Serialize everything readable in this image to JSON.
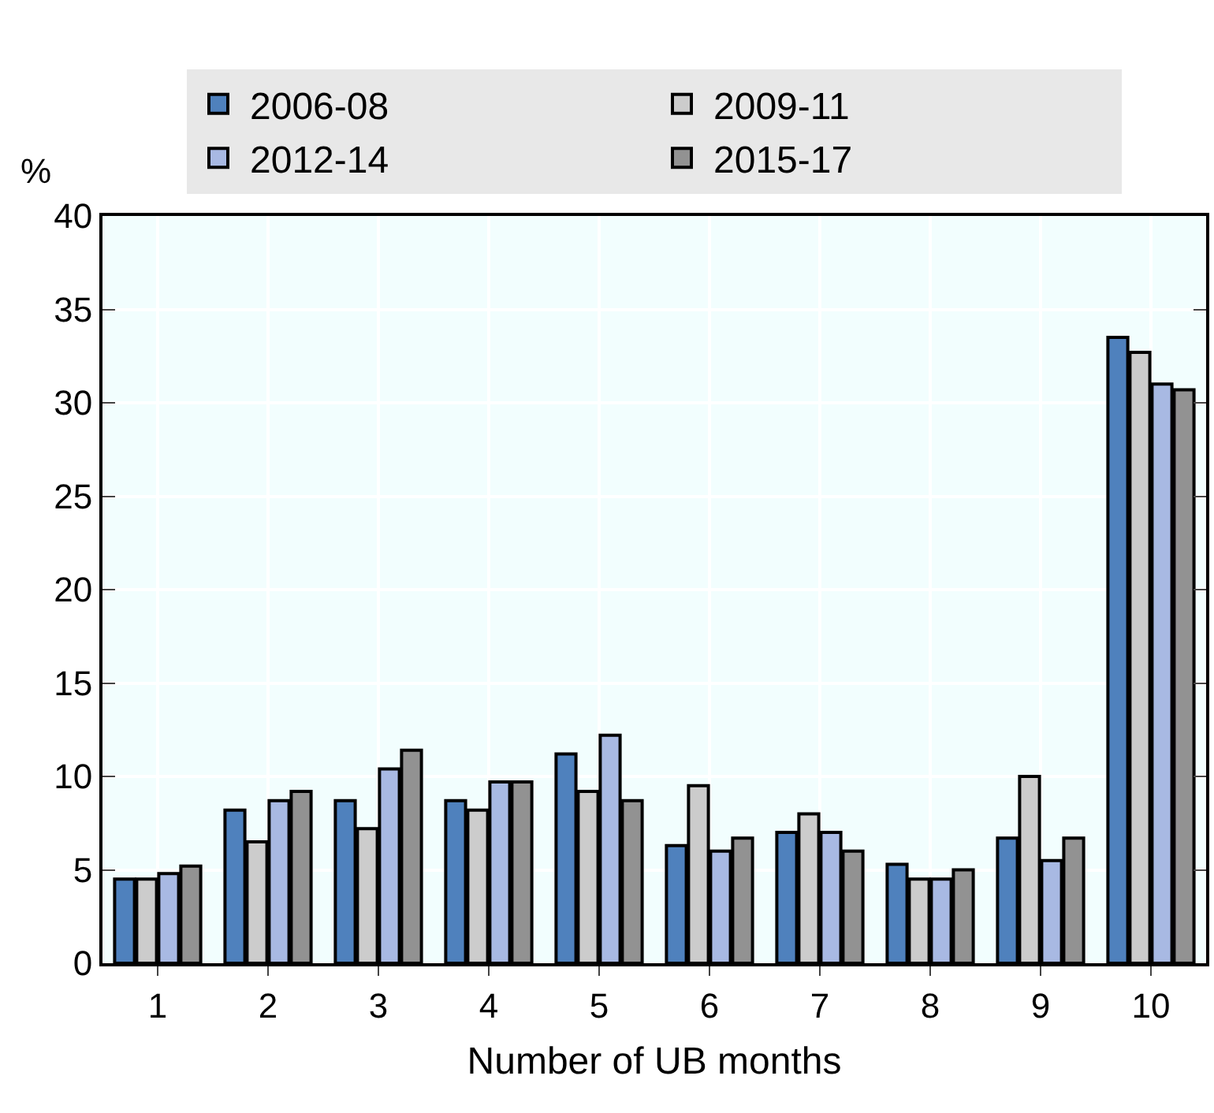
{
  "chart_data": {
    "type": "bar",
    "xlabel": "Number of UB months",
    "ylabel": "%",
    "categories": [
      "1",
      "2",
      "3",
      "4",
      "5",
      "6",
      "7",
      "8",
      "9",
      "10"
    ],
    "series": [
      {
        "name": "2006-08",
        "color": "#4f81bd",
        "values": [
          4.5,
          8.2,
          8.7,
          8.7,
          11.2,
          6.3,
          7.0,
          5.3,
          6.7,
          33.5
        ]
      },
      {
        "name": "2009-11",
        "color": "#cccccc",
        "values": [
          4.5,
          6.5,
          7.2,
          8.2,
          9.2,
          9.5,
          8.0,
          4.5,
          10.0,
          32.7
        ]
      },
      {
        "name": "2012-14",
        "color": "#a8b9e3",
        "values": [
          4.8,
          8.7,
          10.4,
          9.7,
          12.2,
          6.0,
          7.0,
          4.5,
          5.5,
          31.0
        ]
      },
      {
        "name": "2015-17",
        "color": "#929292",
        "values": [
          5.2,
          9.2,
          11.4,
          9.7,
          8.7,
          6.7,
          6.0,
          5.0,
          6.7,
          30.7
        ]
      }
    ],
    "ylim": [
      0,
      40
    ],
    "yticks": [
      0,
      5,
      10,
      15,
      20,
      25,
      30,
      35,
      40
    ],
    "grid": true,
    "legend": "top"
  }
}
